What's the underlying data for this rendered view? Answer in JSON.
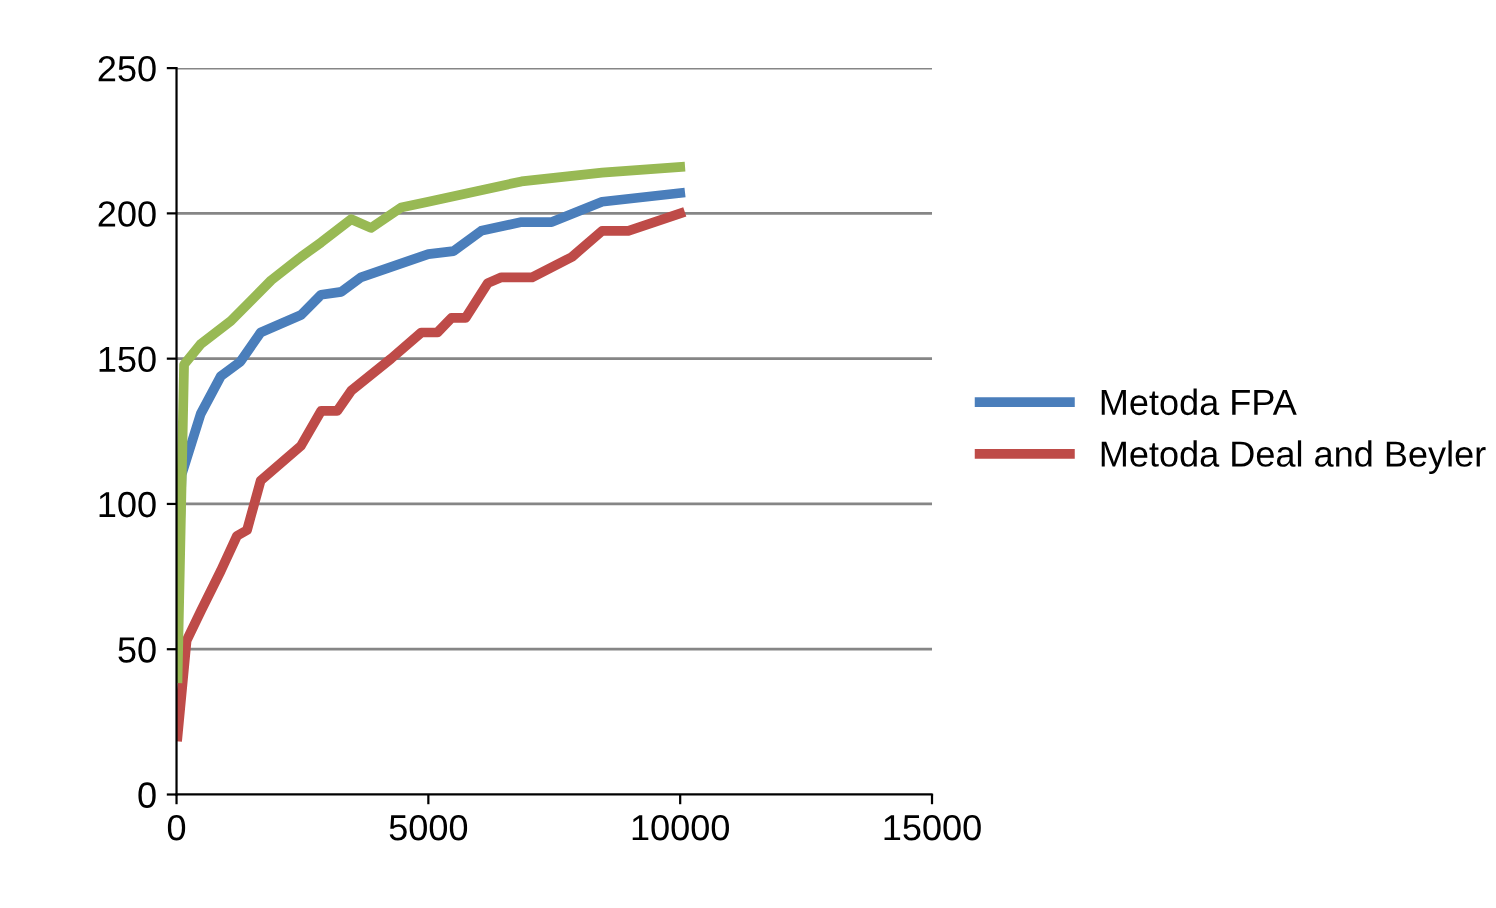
{
  "chart_data": {
    "type": "line",
    "xlim": [
      0,
      15000
    ],
    "xticks": [
      0,
      5000,
      10000,
      15000
    ],
    "ylim": [
      0,
      250
    ],
    "yticks": [
      0,
      50,
      100,
      150,
      200,
      250
    ],
    "grid": "y",
    "legend": "right",
    "marker": "none",
    "line_style": "solid",
    "series": [
      {
        "name": "Metoda FPA",
        "color": "#4a7ebb",
        "x": [
          20,
          100,
          480,
          880,
          1270,
          1670,
          2470,
          2870,
          3270,
          3660,
          5000,
          5500,
          6050,
          6850,
          7450,
          8450,
          10000
        ],
        "values": [
          67,
          110,
          131,
          144,
          149,
          159,
          165,
          172,
          173,
          178,
          186,
          187,
          194,
          197,
          197,
          204,
          207
        ]
      },
      {
        "name": "Metoda Deal and Beyler",
        "color": "#be4b48",
        "x": [
          20,
          200,
          480,
          880,
          1200,
          1400,
          1670,
          2470,
          2870,
          3190,
          3470,
          4260,
          4860,
          5180,
          5460,
          5740,
          6180,
          6450,
          7060,
          7850,
          8450,
          8970,
          10000
        ],
        "values": [
          20,
          53,
          63,
          77,
          89,
          91,
          108,
          120,
          132,
          132,
          139,
          150,
          159,
          159,
          164,
          164,
          176,
          178,
          178,
          185,
          194,
          194,
          200
        ]
      },
      {
        "color": "#98b954",
        "x": [
          20,
          150,
          480,
          1080,
          1480,
          1880,
          2470,
          2870,
          3470,
          3860,
          4460,
          5000,
          6050,
          6850,
          8450,
          10000
        ],
        "values": [
          40,
          148,
          155,
          163,
          170,
          177,
          185,
          190,
          198,
          195,
          202,
          204,
          208,
          211,
          214,
          216
        ]
      }
    ]
  }
}
